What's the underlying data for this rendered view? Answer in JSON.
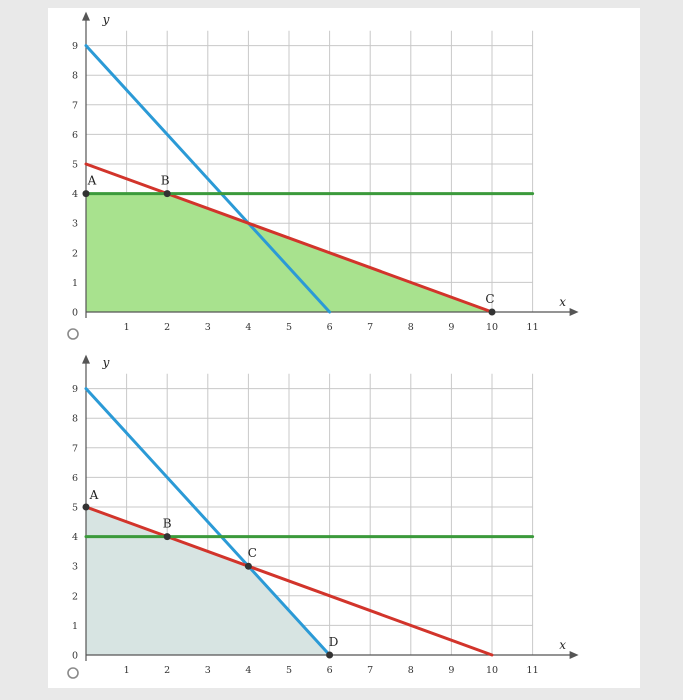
{
  "colors": {
    "page_bg": "#e9e9e9",
    "plot_bg": "#ffffff",
    "grid": "#c8c8c8",
    "axis": "#555555",
    "blue_line": "#2b9ad6",
    "red_line": "#d2342b",
    "green_line": "#3b9a3b",
    "feasible_fill_1": "#a8e28e",
    "feasible_fill_2": "#d7e4e2",
    "point": "#333333",
    "radio": "#8a8a8a"
  },
  "chart_data": [
    {
      "type": "line",
      "option": "1",
      "xlabel": "x",
      "ylabel": "y",
      "xlim": [
        0,
        11
      ],
      "ylim": [
        0,
        9
      ],
      "xticks": [
        1,
        2,
        3,
        4,
        5,
        6,
        7,
        8,
        9,
        10,
        11
      ],
      "yticks": [
        0,
        1,
        2,
        3,
        4,
        5,
        6,
        7,
        8,
        9
      ],
      "grid": true,
      "lines": [
        {
          "color": "blue",
          "x": [
            0,
            6
          ],
          "y": [
            9,
            0
          ]
        },
        {
          "color": "red",
          "x": [
            0,
            10
          ],
          "y": [
            5,
            0
          ]
        },
        {
          "color": "green",
          "x": [
            0,
            11
          ],
          "y": [
            4,
            4
          ]
        }
      ],
      "feasible_region": {
        "x": [
          0,
          0,
          2,
          10
        ],
        "y": [
          0,
          4,
          4,
          0
        ]
      },
      "points": [
        {
          "label": "A",
          "x": 0,
          "y": 4
        },
        {
          "label": "B",
          "x": 2,
          "y": 4
        },
        {
          "label": "C",
          "x": 10,
          "y": 0
        }
      ]
    },
    {
      "type": "line",
      "option": "2",
      "xlabel": "x",
      "ylabel": "y",
      "xlim": [
        0,
        11
      ],
      "ylim": [
        0,
        9
      ],
      "xticks": [
        1,
        2,
        3,
        4,
        5,
        6,
        7,
        8,
        9,
        10,
        11
      ],
      "yticks": [
        0,
        1,
        2,
        3,
        4,
        5,
        6,
        7,
        8,
        9
      ],
      "grid": true,
      "lines": [
        {
          "color": "blue",
          "x": [
            0,
            6
          ],
          "y": [
            9,
            0
          ]
        },
        {
          "color": "red",
          "x": [
            0,
            10
          ],
          "y": [
            5,
            0
          ]
        },
        {
          "color": "green",
          "x": [
            0,
            11
          ],
          "y": [
            4,
            4
          ]
        }
      ],
      "feasible_region": {
        "x": [
          0,
          0,
          2,
          4,
          6
        ],
        "y": [
          0,
          5,
          4,
          3,
          0
        ]
      },
      "points": [
        {
          "label": "A",
          "x": 0,
          "y": 5
        },
        {
          "label": "B",
          "x": 2,
          "y": 4
        },
        {
          "label": "C",
          "x": 4,
          "y": 3
        },
        {
          "label": "D",
          "x": 6,
          "y": 0
        }
      ]
    }
  ]
}
